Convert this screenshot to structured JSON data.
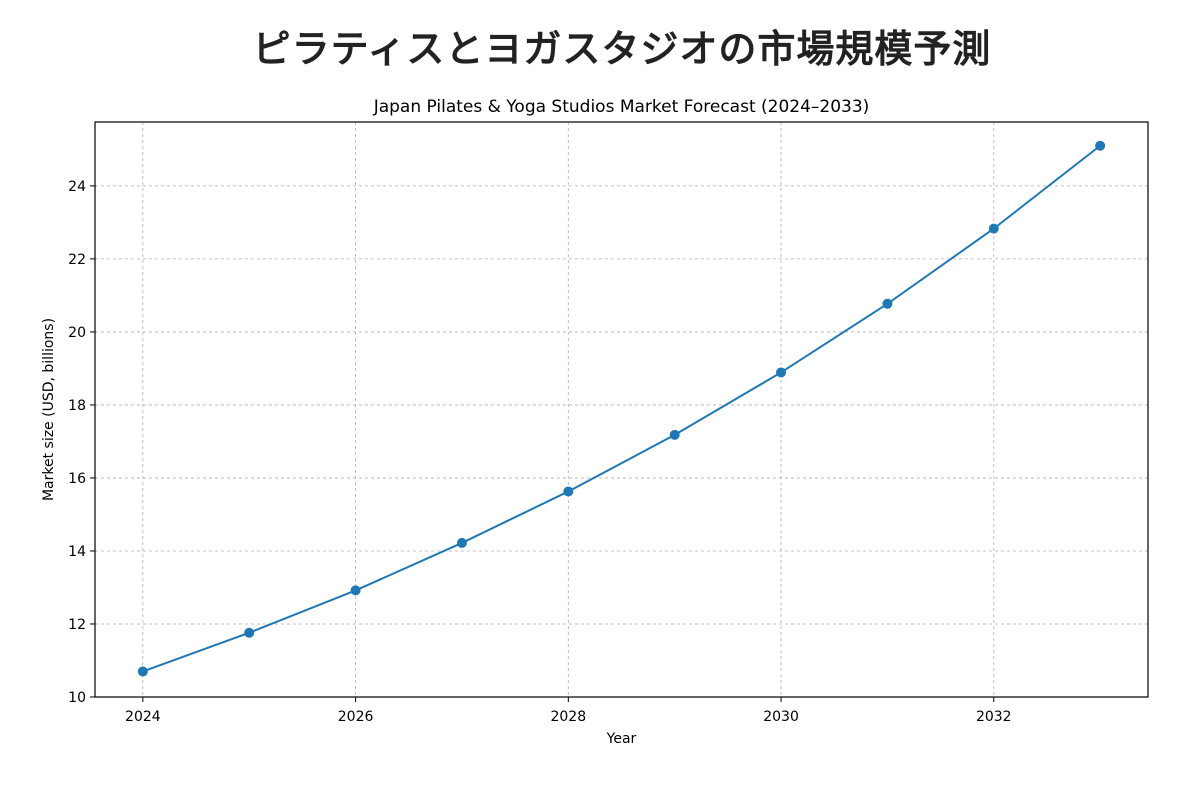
{
  "suptitle": "ピラティスとヨガスタジオの市場規模予測",
  "chart_data": {
    "type": "line",
    "title": "Japan Pilates & Yoga Studios Market Forecast (2024–2033)",
    "xlabel": "Year",
    "ylabel": "Market size (USD, billions)",
    "x": [
      2024,
      2025,
      2026,
      2027,
      2028,
      2029,
      2030,
      2031,
      2032,
      2033
    ],
    "series": [
      {
        "values": [
          10.7,
          11.76,
          12.92,
          14.22,
          15.63,
          17.18,
          18.89,
          20.77,
          22.83,
          25.1
        ],
        "color": "#1f77b4"
      }
    ],
    "xlim": [
      2023.55,
      2033.45
    ],
    "ylim": [
      10,
      25.75
    ],
    "xticks": [
      2024,
      2026,
      2028,
      2030,
      2032
    ],
    "yticks": [
      10,
      12,
      14,
      16,
      18,
      20,
      22,
      24
    ],
    "grid": true,
    "marker": "circle"
  }
}
